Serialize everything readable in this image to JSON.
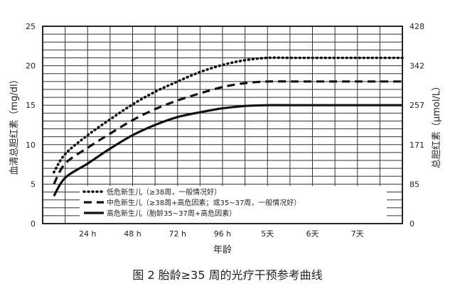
{
  "chart_data": {
    "type": "line",
    "title": "",
    "caption": "图 2   胎龄≥35 周的光疗干预参考曲线",
    "xlabel": "年龄",
    "ylabel_left": "血清总胆红素（mg/dl）",
    "ylabel_right": "总胆红素（μmol/L）",
    "x_unit": "hours",
    "xlim": [
      0,
      192
    ],
    "x_ticks": [
      24,
      48,
      72,
      96,
      120,
      144,
      168
    ],
    "x_tick_labels": [
      "24 h",
      "48 h",
      "72 h",
      "96 h",
      "5天",
      "6天",
      "7天"
    ],
    "ylim_left": [
      0,
      25
    ],
    "y_ticks_left": [
      0,
      5,
      10,
      15,
      20,
      25
    ],
    "y_tick_labels_left": [
      "0",
      "5",
      "10",
      "15",
      "20",
      "25"
    ],
    "y_ticks_right_at_left_units": [
      0,
      5,
      10,
      15,
      20,
      25
    ],
    "y_tick_labels_right": [
      "0",
      "85",
      "171",
      "257",
      "342",
      "428"
    ],
    "grid": {
      "vertical_every_hours": 12,
      "horizontal_every_mgdl": 1
    },
    "legend_position": "bottom-center",
    "series": [
      {
        "name": "低危新生儿（≥38周，一般情况好）",
        "style": "dotted",
        "x": [
          0,
          12,
          24,
          36,
          48,
          60,
          72,
          84,
          96,
          108,
          120,
          132,
          144,
          156,
          168,
          180,
          192
        ],
        "values": [
          6.5,
          8.8,
          11.2,
          13.2,
          15.1,
          16.7,
          18.0,
          19.2,
          20.1,
          20.7,
          21.0,
          21.0,
          21.0,
          21.0,
          21.0,
          21.0,
          21.0
        ]
      },
      {
        "name": "中危新生儿（≥38周+高危因素；或35~37周，一般情况好）",
        "style": "dashed",
        "x": [
          0,
          12,
          24,
          36,
          48,
          60,
          72,
          84,
          96,
          108,
          120,
          132,
          144,
          156,
          168,
          180,
          192
        ],
        "values": [
          5.0,
          7.6,
          9.6,
          11.4,
          13.1,
          14.5,
          15.6,
          16.5,
          17.3,
          17.8,
          18.0,
          18.0,
          18.0,
          18.0,
          18.0,
          18.0,
          18.0
        ]
      },
      {
        "name": "高危新生儿（胎龄35~37周+高危因素）",
        "style": "solid",
        "x": [
          0,
          12,
          24,
          36,
          48,
          60,
          72,
          84,
          96,
          108,
          120,
          132,
          144,
          156,
          168,
          180,
          192
        ],
        "values": [
          3.5,
          5.8,
          7.6,
          9.5,
          11.2,
          12.5,
          13.5,
          14.1,
          14.6,
          14.9,
          15.0,
          15.0,
          15.0,
          15.0,
          15.0,
          15.0,
          15.0
        ]
      }
    ]
  }
}
